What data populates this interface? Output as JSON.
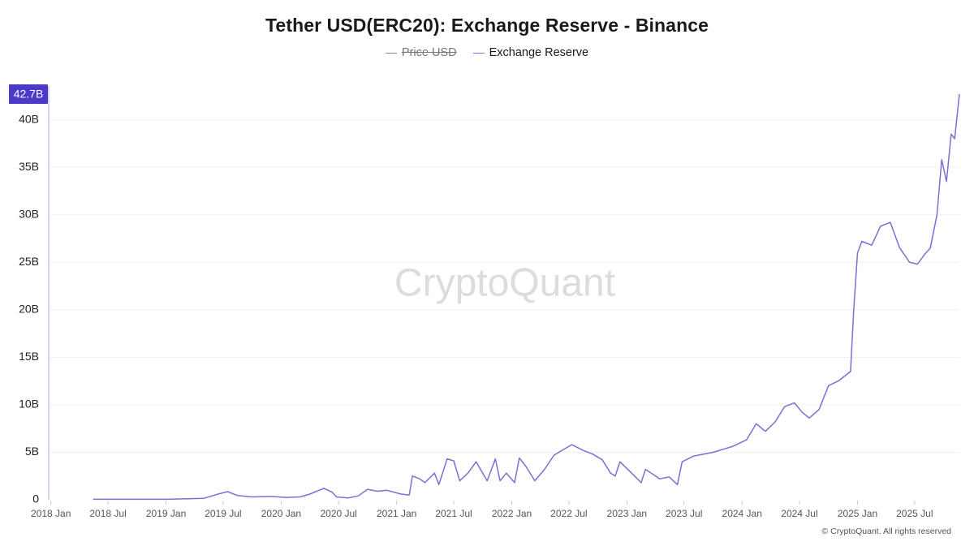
{
  "chart_data": {
    "type": "line",
    "title": "Tether USD(ERC20): Exchange Reserve - Binance",
    "legend": [
      {
        "name": "Price USD",
        "color": "#8a8a8a",
        "visible": false
      },
      {
        "name": "Exchange Reserve",
        "color": "#7b6fd6",
        "visible": true
      }
    ],
    "legend_placement": "top-center",
    "watermark": "CryptoQuant",
    "copyright": "© CryptoQuant. All rights reserved",
    "current_value_label": "42.7B",
    "x_range": [
      "2017-12-25",
      "2025-11-20"
    ],
    "x_ticks": [
      {
        "date": "2018-01-01",
        "label": "2018 Jan"
      },
      {
        "date": "2018-07-01",
        "label": "2018 Jul"
      },
      {
        "date": "2019-01-01",
        "label": "2019 Jan"
      },
      {
        "date": "2019-07-01",
        "label": "2019 Jul"
      },
      {
        "date": "2020-01-01",
        "label": "2020 Jan"
      },
      {
        "date": "2020-07-01",
        "label": "2020 Jul"
      },
      {
        "date": "2021-01-01",
        "label": "2021 Jan"
      },
      {
        "date": "2021-07-01",
        "label": "2021 Jul"
      },
      {
        "date": "2022-01-01",
        "label": "2022 Jan"
      },
      {
        "date": "2022-07-01",
        "label": "2022 Jul"
      },
      {
        "date": "2023-01-01",
        "label": "2023 Jan"
      },
      {
        "date": "2023-07-01",
        "label": "2023 Jul"
      },
      {
        "date": "2024-01-01",
        "label": "2024 Jan"
      },
      {
        "date": "2024-07-01",
        "label": "2024 Jul"
      },
      {
        "date": "2025-01-01",
        "label": "2025 Jan"
      },
      {
        "date": "2025-07-01",
        "label": "2025 Jul"
      }
    ],
    "y_ticks": [
      {
        "value": 0,
        "label": "0"
      },
      {
        "value": 5,
        "label": "5B"
      },
      {
        "value": 10,
        "label": "10B"
      },
      {
        "value": 15,
        "label": "15B"
      },
      {
        "value": 20,
        "label": "20B"
      },
      {
        "value": 25,
        "label": "25B"
      },
      {
        "value": 30,
        "label": "30B"
      },
      {
        "value": 35,
        "label": "35B"
      },
      {
        "value": 40,
        "label": "40B"
      }
    ],
    "ylim": [
      0,
      42.7
    ],
    "grid": true,
    "series": [
      {
        "name": "Exchange Reserve",
        "color": "#7b6fd6",
        "points": [
          [
            "2018-05-15",
            0.05
          ],
          [
            "2018-09-01",
            0.05
          ],
          [
            "2019-01-01",
            0.05
          ],
          [
            "2019-05-01",
            0.15
          ],
          [
            "2019-06-15",
            0.6
          ],
          [
            "2019-07-15",
            0.85
          ],
          [
            "2019-08-15",
            0.45
          ],
          [
            "2019-10-01",
            0.3
          ],
          [
            "2019-12-01",
            0.35
          ],
          [
            "2020-01-15",
            0.25
          ],
          [
            "2020-03-01",
            0.3
          ],
          [
            "2020-04-01",
            0.6
          ],
          [
            "2020-05-15",
            1.2
          ],
          [
            "2020-06-10",
            0.8
          ],
          [
            "2020-06-25",
            0.3
          ],
          [
            "2020-08-01",
            0.2
          ],
          [
            "2020-09-01",
            0.4
          ],
          [
            "2020-10-01",
            1.1
          ],
          [
            "2020-11-01",
            0.9
          ],
          [
            "2020-12-01",
            1.0
          ],
          [
            "2021-01-15",
            0.6
          ],
          [
            "2021-02-10",
            0.5
          ],
          [
            "2021-02-20",
            2.5
          ],
          [
            "2021-03-15",
            2.2
          ],
          [
            "2021-04-01",
            1.8
          ],
          [
            "2021-05-01",
            2.8
          ],
          [
            "2021-05-15",
            1.6
          ],
          [
            "2021-06-10",
            4.3
          ],
          [
            "2021-07-01",
            4.1
          ],
          [
            "2021-07-20",
            2.0
          ],
          [
            "2021-08-15",
            2.8
          ],
          [
            "2021-09-10",
            4.0
          ],
          [
            "2021-10-15",
            2.0
          ],
          [
            "2021-11-10",
            4.3
          ],
          [
            "2021-11-25",
            2.0
          ],
          [
            "2021-12-15",
            2.8
          ],
          [
            "2022-01-10",
            1.8
          ],
          [
            "2022-01-25",
            4.4
          ],
          [
            "2022-02-15",
            3.5
          ],
          [
            "2022-03-15",
            2.0
          ],
          [
            "2022-04-15",
            3.2
          ],
          [
            "2022-05-15",
            4.7
          ],
          [
            "2022-06-15",
            5.3
          ],
          [
            "2022-07-10",
            5.8
          ],
          [
            "2022-08-15",
            5.2
          ],
          [
            "2022-09-15",
            4.8
          ],
          [
            "2022-10-15",
            4.2
          ],
          [
            "2022-11-10",
            2.8
          ],
          [
            "2022-11-25",
            2.5
          ],
          [
            "2022-12-10",
            4.0
          ],
          [
            "2023-01-10",
            3.0
          ],
          [
            "2023-02-15",
            1.8
          ],
          [
            "2023-03-01",
            3.2
          ],
          [
            "2023-04-15",
            2.2
          ],
          [
            "2023-05-15",
            2.4
          ],
          [
            "2023-06-10",
            1.6
          ],
          [
            "2023-06-25",
            4.0
          ],
          [
            "2023-08-01",
            4.6
          ],
          [
            "2023-10-01",
            5.0
          ],
          [
            "2023-12-01",
            5.6
          ],
          [
            "2024-01-15",
            6.3
          ],
          [
            "2024-02-15",
            8.0
          ],
          [
            "2024-03-15",
            7.2
          ],
          [
            "2024-04-15",
            8.2
          ],
          [
            "2024-05-15",
            9.8
          ],
          [
            "2024-06-15",
            10.2
          ],
          [
            "2024-07-10",
            9.2
          ],
          [
            "2024-08-01",
            8.6
          ],
          [
            "2024-09-01",
            9.5
          ],
          [
            "2024-10-01",
            12.0
          ],
          [
            "2024-11-01",
            12.5
          ],
          [
            "2024-12-10",
            13.5
          ],
          [
            "2024-12-20",
            20.0
          ],
          [
            "2025-01-01",
            26.0
          ],
          [
            "2025-01-15",
            27.2
          ],
          [
            "2025-02-15",
            26.8
          ],
          [
            "2025-03-15",
            28.8
          ],
          [
            "2025-04-15",
            29.2
          ],
          [
            "2025-05-15",
            26.5
          ],
          [
            "2025-06-15",
            25.0
          ],
          [
            "2025-07-10",
            24.8
          ],
          [
            "2025-08-01",
            25.8
          ],
          [
            "2025-08-20",
            26.5
          ],
          [
            "2025-09-10",
            30.0
          ],
          [
            "2025-09-25",
            35.8
          ],
          [
            "2025-10-10",
            33.5
          ],
          [
            "2025-10-25",
            38.5
          ],
          [
            "2025-11-05",
            38.0
          ],
          [
            "2025-11-20",
            42.7
          ]
        ]
      }
    ]
  }
}
